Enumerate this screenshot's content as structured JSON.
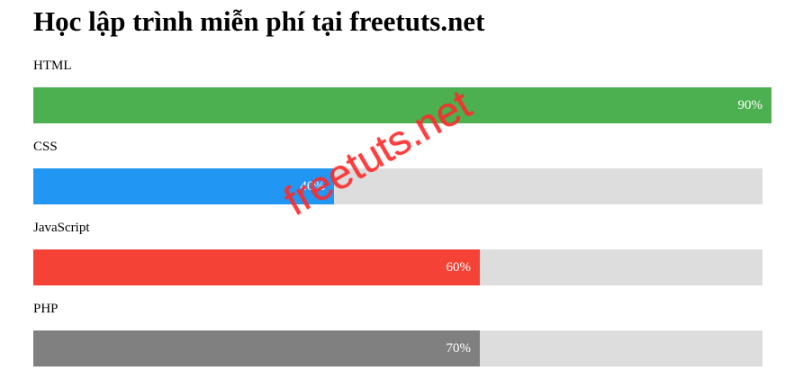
{
  "page": {
    "title": "Học lập trình miễn phí tại freetuts.net"
  },
  "skills": [
    {
      "label": "HTML",
      "percent_text": "90%",
      "fraction": 0.9,
      "color": "#4caf50",
      "track_color": "#dddddd"
    },
    {
      "label": "CSS",
      "percent_text": "40%",
      "fraction": 0.4,
      "color": "#2196f3",
      "track_color": "#dddddd"
    },
    {
      "label": "JavaScript",
      "percent_text": "60%",
      "fraction": 0.6,
      "color": "#f44336",
      "track_color": "#dddddd"
    },
    {
      "label": "PHP",
      "percent_text": "70%",
      "fraction": 0.7,
      "color": "#808080",
      "track_color": "#dddddd"
    }
  ],
  "watermark": {
    "text": "freetuts.net",
    "color": "#ff2a2a"
  }
}
